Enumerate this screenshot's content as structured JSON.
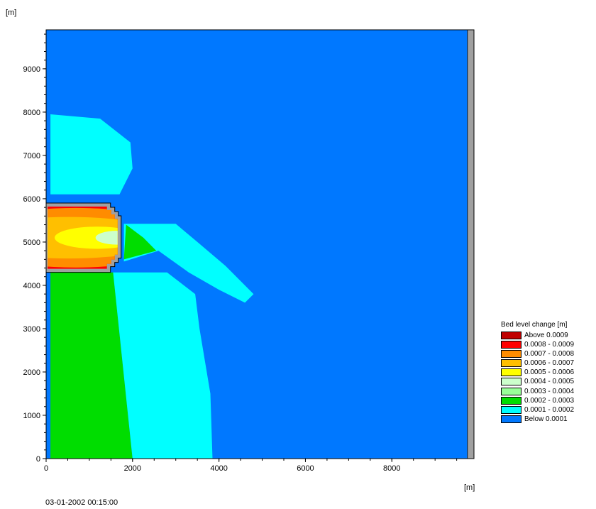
{
  "chart_data": {
    "type": "heatmap",
    "title": "",
    "y_unit_label": "[m]",
    "x_unit_label": "[m]",
    "xlim": [
      0,
      9900
    ],
    "ylim": [
      0,
      9900
    ],
    "x_ticks": [
      "0",
      "2000",
      "4000",
      "6000",
      "8000"
    ],
    "y_ticks": [
      "0",
      "1000",
      "2000",
      "3000",
      "4000",
      "5000",
      "6000",
      "7000",
      "8000",
      "9000"
    ],
    "legend": {
      "title": "Bed level change [m]",
      "position": "bottom-right",
      "entries": [
        {
          "label": "Above 0.0009",
          "color": "#c00000"
        },
        {
          "label": "0.0008 - 0.0009",
          "color": "#ff0000"
        },
        {
          "label": "0.0007 - 0.0008",
          "color": "#ff8c00"
        },
        {
          "label": "0.0006 - 0.0007",
          "color": "#ffbf00"
        },
        {
          "label": "0.0005 - 0.0006",
          "color": "#ffff00"
        },
        {
          "label": "0.0004 - 0.0005",
          "color": "#ccffcc"
        },
        {
          "label": "0.0003 - 0.0004",
          "color": "#99ff99"
        },
        {
          "label": "0.0002 - 0.0003",
          "color": "#00dd00"
        },
        {
          "label": "0.0001 - 0.0002",
          "color": "#00ffff"
        },
        {
          "label": "Below 0.0001",
          "color": "#0078ff"
        }
      ]
    },
    "regions": [
      {
        "name": "cyan-plume-north",
        "class": "0.0001 - 0.0002",
        "color": "#00ffff",
        "polygon": [
          [
            100,
            7950
          ],
          [
            1250,
            7850
          ],
          [
            1950,
            7300
          ],
          [
            2000,
            6700
          ],
          [
            1700,
            6100
          ],
          [
            100,
            6100
          ]
        ]
      },
      {
        "name": "green-south",
        "class": "0.0002 - 0.0003",
        "color": "#00dd00",
        "polygon": [
          [
            100,
            0
          ],
          [
            2000,
            0
          ],
          [
            1550,
            4300
          ],
          [
            100,
            4300
          ]
        ]
      },
      {
        "name": "cyan-south",
        "class": "0.0001 - 0.0002",
        "color": "#00ffff",
        "polygon": [
          [
            2000,
            0
          ],
          [
            3850,
            0
          ],
          [
            3800,
            1500
          ],
          [
            3550,
            3000
          ],
          [
            3450,
            3800
          ],
          [
            2800,
            4300
          ],
          [
            1550,
            4300
          ]
        ]
      },
      {
        "name": "cyan-plume-east",
        "class": "0.0001 - 0.0002",
        "color": "#00ffff",
        "polygon": [
          [
            1800,
            5420
          ],
          [
            3000,
            5420
          ],
          [
            3500,
            5000
          ],
          [
            4150,
            4450
          ],
          [
            4800,
            3800
          ],
          [
            4600,
            3600
          ],
          [
            4000,
            3900
          ],
          [
            3300,
            4300
          ],
          [
            2600,
            4800
          ],
          [
            1800,
            4550
          ]
        ]
      },
      {
        "name": "green-band-east",
        "class": "0.0002 - 0.0003",
        "color": "#00dd00",
        "polygon": [
          [
            1850,
            5400
          ],
          [
            2250,
            5100
          ],
          [
            2550,
            4800
          ],
          [
            1800,
            4600
          ]
        ]
      }
    ],
    "basin": {
      "class_bands_top_to_bottom": [
        {
          "class": "Above 0.0009",
          "color": "#c00000"
        },
        {
          "class": "0.0008 - 0.0009",
          "color": "#ff0000"
        },
        {
          "class": "0.0007 - 0.0008",
          "color": "#ff8c00"
        },
        {
          "class": "0.0006 - 0.0007",
          "color": "#ffbf00"
        },
        {
          "class": "0.0005 - 0.0006",
          "color": "#ffff00"
        },
        {
          "class": "0.0004 - 0.0005",
          "color": "#ccffcc"
        }
      ],
      "wall_color": "#a0a0a0",
      "extent_x": [
        100,
        1900
      ],
      "extent_y": [
        4300,
        5900
      ]
    },
    "land_strip": {
      "x": [
        9750,
        9900
      ],
      "color": "#a0a0a0"
    }
  },
  "timestamp": "03-01-2002 00:15:00"
}
